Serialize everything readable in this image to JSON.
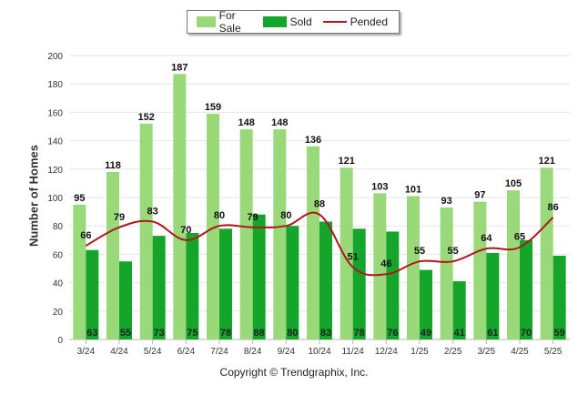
{
  "chart_data": {
    "type": "bar",
    "categories": [
      "3/24",
      "4/24",
      "5/24",
      "6/24",
      "7/24",
      "8/24",
      "9/24",
      "10/24",
      "11/24",
      "12/24",
      "1/25",
      "2/25",
      "3/25",
      "4/25",
      "5/25"
    ],
    "series": [
      {
        "name": "For Sale",
        "type": "bar",
        "color": "#9ad97a",
        "values": [
          95,
          118,
          152,
          187,
          159,
          148,
          148,
          136,
          121,
          103,
          101,
          93,
          97,
          105,
          121
        ]
      },
      {
        "name": "Sold",
        "type": "bar",
        "color": "#14a52a",
        "values": [
          63,
          55,
          73,
          75,
          78,
          88,
          80,
          83,
          78,
          76,
          49,
          41,
          61,
          70,
          59
        ]
      },
      {
        "name": "Pended",
        "type": "line",
        "color": "#b0161a",
        "values": [
          66,
          79,
          83,
          70,
          80,
          79,
          80,
          88,
          51,
          46,
          55,
          55,
          64,
          65,
          86
        ]
      }
    ],
    "ylabel": "Number of Homes",
    "xlabel": "",
    "ylim": [
      0,
      200
    ],
    "yticks": [
      0,
      20,
      40,
      60,
      80,
      100,
      120,
      140,
      160,
      180,
      200
    ],
    "grid": true,
    "legend_position": "top-center"
  },
  "legend": {
    "for_sale": "For Sale",
    "sold": "Sold",
    "pended": "Pended"
  },
  "footer": {
    "copyright": "Copyright © Trendgraphix, Inc."
  }
}
